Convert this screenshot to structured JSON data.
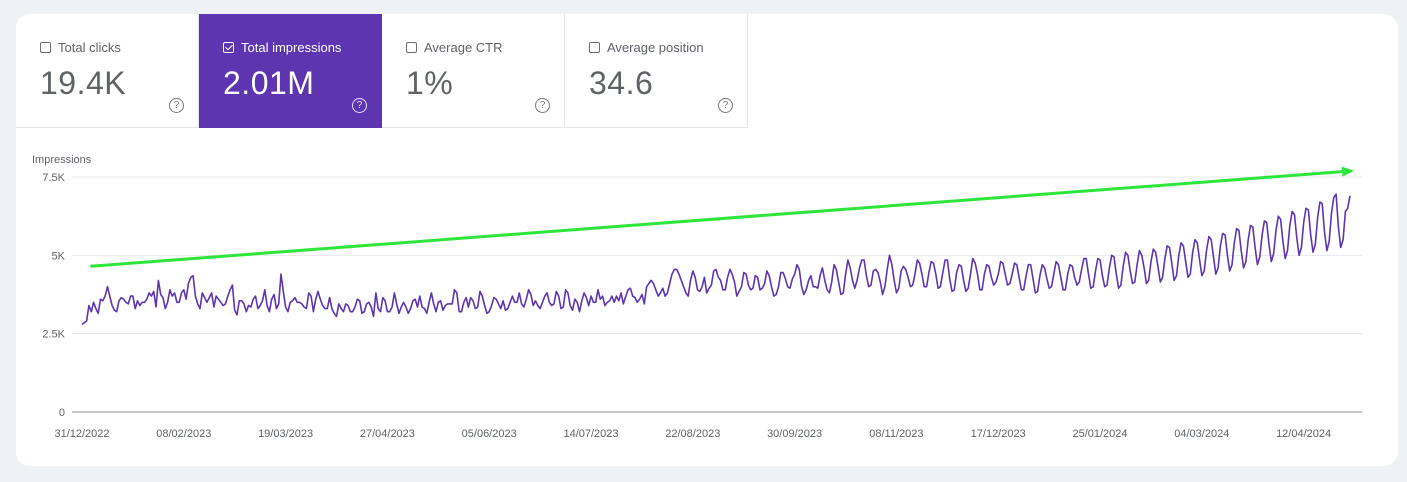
{
  "metrics": [
    {
      "label": "Total clicks",
      "value": "19.4K",
      "selected": false
    },
    {
      "label": "Total impressions",
      "value": "2.01M",
      "selected": true
    },
    {
      "label": "Average CTR",
      "value": "1%",
      "selected": false
    },
    {
      "label": "Average position",
      "value": "34.6",
      "selected": false
    }
  ],
  "colors": {
    "accent": "#5e35b1",
    "series": "#5e35b1",
    "trend": "#2ee53a"
  },
  "chart_data": {
    "type": "line",
    "title": "",
    "ylabel": "Impressions",
    "xlabel": "",
    "ylim": [
      0,
      7500
    ],
    "yticks": [
      0,
      2500,
      5000,
      7500
    ],
    "ytick_labels": [
      "0",
      "2.5K",
      "5K",
      "7.5K"
    ],
    "xtick_labels": [
      "31/12/2022",
      "08/02/2023",
      "19/03/2023",
      "27/04/2023",
      "05/06/2023",
      "14/07/2023",
      "22/08/2023",
      "30/09/2023",
      "08/11/2023",
      "17/12/2023",
      "25/01/2024",
      "04/03/2024",
      "12/04/2024"
    ],
    "x_start": "2022-12-31",
    "x_end": "2024-05-06",
    "grid": true,
    "series": [
      {
        "values": [
          2800,
          2850,
          2900,
          3400,
          3200,
          3500,
          3300,
          3150,
          3600,
          3550,
          3700,
          4000,
          3700,
          3400,
          3250,
          3200,
          3550,
          3650,
          3600,
          3500,
          3450,
          3700,
          3700,
          3300,
          3550,
          3400,
          3500,
          3500,
          3600,
          3800,
          3700,
          3850,
          3350,
          4200,
          3750,
          3650,
          3300,
          3500,
          3900,
          3700,
          3800,
          3500,
          3500,
          3800,
          3900,
          3600,
          4100,
          4300,
          4350,
          3700,
          3450,
          3300,
          3800,
          3650,
          3500,
          3650,
          3800,
          3350,
          3700,
          3600,
          3500,
          3400,
          3450,
          3700,
          3900,
          4050,
          3250,
          3100,
          3550,
          3550,
          3450,
          3200,
          3400,
          3350,
          3600,
          3700,
          3300,
          3400,
          3550,
          3900,
          3400,
          3200,
          3600,
          3750,
          3300,
          3450,
          4400,
          3850,
          3350,
          3200,
          3500,
          3550,
          3650,
          3500,
          3500,
          3450,
          3350,
          3300,
          3800,
          3700,
          3200,
          3600,
          3850,
          3600,
          3400,
          3300,
          3300,
          3650,
          3300,
          3150,
          3050,
          3450,
          3300,
          3200,
          3450,
          3400,
          3200,
          3200,
          3350,
          3600,
          3550,
          3150,
          3200,
          3450,
          3500,
          3350,
          3050,
          3800,
          3300,
          3200,
          3650,
          3550,
          3200,
          3200,
          3350,
          3800,
          3450,
          3150,
          3350,
          3500,
          3350,
          3150,
          3300,
          3550,
          3600,
          3350,
          3700,
          3350,
          3300,
          3150,
          3500,
          3800,
          3450,
          3200,
          3500,
          3550,
          3250,
          3400,
          3450,
          3450,
          3450,
          3900,
          3800,
          3200,
          3200,
          3500,
          3650,
          3350,
          3650,
          3550,
          3300,
          3350,
          3850,
          3700,
          3400,
          3150,
          3200,
          3400,
          3650,
          3600,
          3450,
          3300,
          3550,
          3250,
          3300,
          3500,
          3700,
          3500,
          3500,
          3800,
          3450,
          3350,
          3600,
          3900,
          3750,
          3400,
          3550,
          3400,
          3300,
          3500,
          3700,
          3800,
          3500,
          3400,
          3450,
          3850,
          3700,
          3300,
          3350,
          3900,
          3800,
          3400,
          3250,
          3600,
          3500,
          3200,
          3550,
          3800,
          3650,
          3400,
          3700,
          3500,
          3500,
          3900,
          3600,
          3700,
          3400,
          3500,
          3550,
          3700,
          3500,
          3700,
          3550,
          3800,
          3450,
          3700,
          3900,
          3950,
          3700,
          3650,
          3500,
          3600,
          3750,
          3450,
          4000,
          4100,
          4200,
          4100,
          3900,
          3700,
          3800,
          3950,
          3700,
          3800,
          4100,
          4400,
          4550,
          4550,
          4400,
          4200,
          4000,
          3800,
          3700,
          4200,
          4500,
          4300,
          3900,
          3850,
          4000,
          4300,
          3800,
          3950,
          4050,
          4500,
          4550,
          4300,
          4200,
          3900,
          3900,
          4300,
          4550,
          4400,
          4150,
          3700,
          3850,
          4000,
          4450,
          4400,
          4050,
          3900,
          3950,
          4350,
          4300,
          3900,
          3950,
          4100,
          4500,
          4350,
          4000,
          3700,
          3750,
          4000,
          4450,
          4450,
          4250,
          4000,
          3950,
          4250,
          4400,
          4700,
          4550,
          4000,
          3750,
          3900,
          4200,
          4350,
          4000,
          4000,
          3950,
          4350,
          4600,
          4200,
          3900,
          3800,
          4150,
          4700,
          4550,
          4150,
          3750,
          3800,
          4400,
          4850,
          4600,
          4200,
          3950,
          4200,
          4600,
          4850,
          4850,
          4350,
          4000,
          4050,
          4500,
          4550,
          4450,
          4150,
          3750,
          4000,
          4550,
          5000,
          4700,
          4200,
          3800,
          3950,
          4500,
          4650,
          4550,
          4300,
          4000,
          4050,
          4400,
          4850,
          4750,
          4400,
          4000,
          4000,
          4450,
          4800,
          4750,
          4400,
          3950,
          4000,
          4450,
          4850,
          4850,
          4250,
          3850,
          3900,
          4450,
          4700,
          4650,
          4200,
          3850,
          3950,
          4400,
          4900,
          4750,
          4400,
          3900,
          3900,
          4400,
          4700,
          4650,
          4300,
          4050,
          4150,
          4400,
          4800,
          4750,
          4400,
          4050,
          4100,
          4400,
          4750,
          4700,
          4300,
          3900,
          3900,
          4350,
          4700,
          4700,
          4250,
          3800,
          3850,
          4350,
          4700,
          4600,
          4250,
          3950,
          4000,
          4400,
          4800,
          4700,
          4300,
          3900,
          3900,
          4400,
          4700,
          4650,
          4300,
          4050,
          4150,
          4550,
          4900,
          4900,
          4400,
          3950,
          4000,
          4500,
          4900,
          4850,
          4350,
          4000,
          4050,
          4600,
          5000,
          4950,
          4400,
          3950,
          4050,
          4650,
          5100,
          5000,
          4500,
          4100,
          4150,
          4700,
          5150,
          5000,
          4600,
          4100,
          4200,
          4800,
          5200,
          5100,
          4650,
          4150,
          4300,
          4900,
          5300,
          5250,
          4750,
          4200,
          4350,
          5000,
          5400,
          5300,
          4800,
          4300,
          4400,
          5100,
          5500,
          5400,
          4850,
          4350,
          4500,
          5150,
          5600,
          5500,
          4950,
          4400,
          4600,
          5300,
          5700,
          5650,
          5000,
          4500,
          4700,
          5400,
          5850,
          5800,
          5150,
          4600,
          4800,
          5500,
          5950,
          5900,
          5250,
          4700,
          4950,
          5650,
          6100,
          6050,
          5350,
          4800,
          5050,
          5800,
          6250,
          6150,
          5450,
          4900,
          5150,
          5950,
          6400,
          6300,
          5550,
          5000,
          5250,
          6050,
          6500,
          6450,
          5650,
          5100,
          5350,
          6200,
          6700,
          6650,
          5750,
          5150,
          5450,
          6350,
          6850,
          6950,
          5900,
          5250,
          5500,
          6400,
          6500,
          6900
        ]
      }
    ],
    "annotations": [
      {
        "type": "trend-arrow",
        "from": [
          "2023-01-07",
          4650
        ],
        "to": [
          "2024-05-03",
          7700
        ],
        "color": "#2ee53a"
      }
    ]
  }
}
